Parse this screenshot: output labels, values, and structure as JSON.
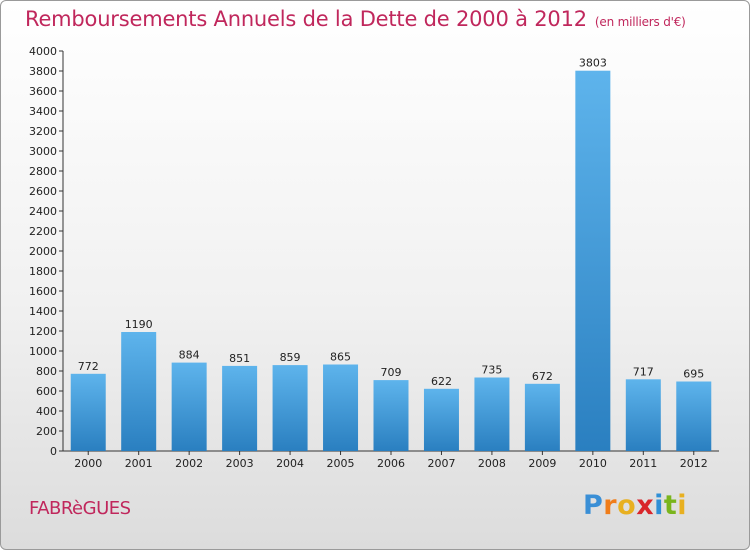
{
  "title": "Remboursements Annuels de la Dette de 2000 à 2012",
  "subtitle": "(en milliers d'€)",
  "commune": "FABRèGUES",
  "logo": {
    "letters": [
      "P",
      "r",
      "o",
      "x",
      "i",
      "t",
      "i"
    ],
    "colors": [
      "#3a8fd6",
      "#f07d1a",
      "#e8b020",
      "#d9262b",
      "#2f8fd6",
      "#7ab51d",
      "#e8b020"
    ]
  },
  "colors": {
    "title": "#c0275c",
    "bar_top": "#5eb4ec",
    "bar_bottom": "#2a7fc0"
  },
  "chart_data": {
    "type": "bar",
    "categories": [
      "2000",
      "2001",
      "2002",
      "2003",
      "2004",
      "2005",
      "2006",
      "2007",
      "2008",
      "2009",
      "2010",
      "2011",
      "2012"
    ],
    "values": [
      772,
      1190,
      884,
      851,
      859,
      865,
      709,
      622,
      735,
      672,
      3803,
      717,
      695
    ],
    "ylim": [
      0,
      4000
    ],
    "yticks": [
      0,
      200,
      400,
      600,
      800,
      1000,
      1200,
      1400,
      1600,
      1800,
      2000,
      2200,
      2400,
      2600,
      2800,
      3000,
      3200,
      3400,
      3600,
      3800,
      4000
    ],
    "grid": false
  }
}
